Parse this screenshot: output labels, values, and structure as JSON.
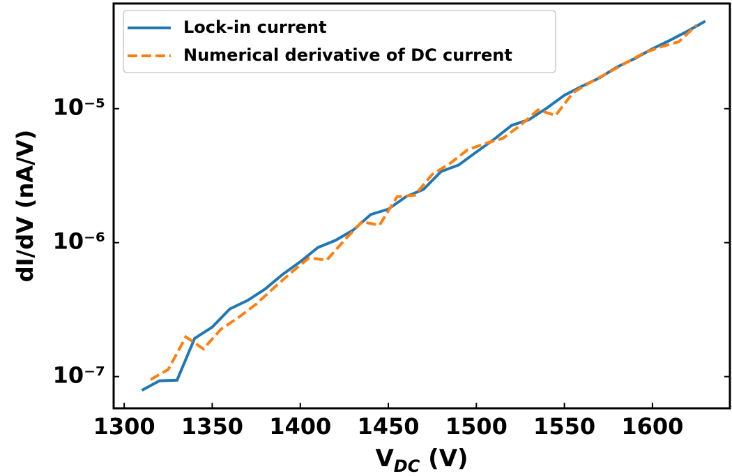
{
  "chart_data": {
    "type": "line",
    "xlabel_parts": [
      "V",
      "DC",
      " (V)"
    ],
    "ylabel": "dI/dV (nA/V)",
    "yscale": "log",
    "legend": "upper left",
    "xlim": [
      1294,
      1644
    ],
    "ylim": [
      5.8e-08,
      6.1e-05
    ],
    "xticks": [
      1300,
      1350,
      1400,
      1450,
      1500,
      1550,
      1600
    ],
    "yticks": [
      {
        "value": 1e-07,
        "label": "10⁻⁷"
      },
      {
        "value": 1e-06,
        "label": "10⁻⁶"
      },
      {
        "value": 1e-05,
        "label": "10⁻⁵"
      }
    ],
    "series": [
      {
        "name": "Lock-in current",
        "color": "#1f77b4",
        "dash": false,
        "x": [
          1310,
          1320,
          1330,
          1340,
          1350,
          1360,
          1370,
          1380,
          1390,
          1400,
          1410,
          1420,
          1430,
          1440,
          1450,
          1460,
          1470,
          1480,
          1490,
          1500,
          1510,
          1520,
          1530,
          1540,
          1550,
          1560,
          1570,
          1580,
          1590,
          1600,
          1610,
          1620,
          1630
        ],
        "values": [
          7.9e-08,
          9.3e-08,
          9.4e-08,
          1.93e-07,
          2.34e-07,
          3.2e-07,
          3.7e-07,
          4.5e-07,
          5.8e-07,
          7.2e-07,
          9.2e-07,
          1.04e-06,
          1.24e-06,
          1.62e-06,
          1.78e-06,
          2.2e-06,
          2.5e-06,
          3.4e-06,
          3.8e-06,
          4.75e-06,
          5.9e-06,
          7.5e-06,
          8.3e-06,
          1.01e-05,
          1.26e-05,
          1.47e-05,
          1.7e-05,
          2.05e-05,
          2.37e-05,
          2.8e-05,
          3.24e-05,
          3.8e-05,
          4.5e-05
        ]
      },
      {
        "name": "Numerical derivative of DC current",
        "color": "#ff7f0e",
        "dash": true,
        "x": [
          1315,
          1325,
          1335,
          1345,
          1355,
          1365,
          1375,
          1385,
          1395,
          1405,
          1415,
          1425,
          1435,
          1445,
          1455,
          1465,
          1475,
          1485,
          1495,
          1505,
          1515,
          1525,
          1535,
          1545,
          1555,
          1565,
          1575,
          1585,
          1595,
          1605,
          1615,
          1625
        ],
        "values": [
          9.5e-08,
          1.13e-07,
          1.98e-07,
          1.61e-07,
          2.26e-07,
          2.77e-07,
          3.48e-07,
          4.6e-07,
          6e-07,
          7.7e-07,
          7.4e-07,
          1.04e-06,
          1.43e-06,
          1.35e-06,
          2.2e-06,
          2.26e-06,
          3.24e-06,
          3.9e-06,
          4.93e-06,
          5.5e-06,
          6e-06,
          7.5e-06,
          9.8e-06,
          8.9e-06,
          1.32e-05,
          1.58e-05,
          1.86e-05,
          2.2e-05,
          2.6e-05,
          2.9e-05,
          3.16e-05,
          4.2e-05
        ]
      }
    ]
  }
}
